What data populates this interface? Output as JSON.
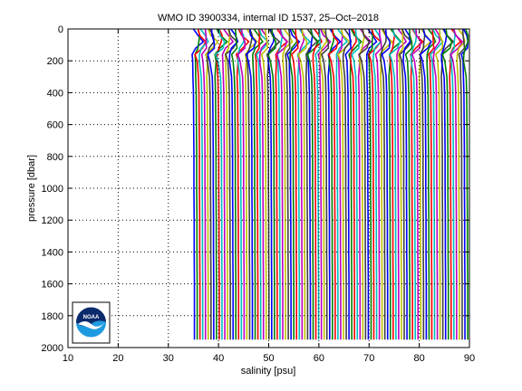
{
  "chart_data": {
    "type": "line",
    "title": "WMO ID 3900334, internal ID 1537, 25–Oct–2018",
    "xlabel": "salinity [psu]",
    "ylabel": "pressure [dbar]",
    "xlim": [
      10,
      90
    ],
    "ylim": [
      2000,
      0
    ],
    "x_ticks": [
      10,
      20,
      30,
      40,
      50,
      60,
      70,
      80,
      90
    ],
    "y_ticks": [
      0,
      200,
      400,
      600,
      800,
      1000,
      1200,
      1400,
      1600,
      1800,
      2000
    ],
    "grid": true,
    "grid_style": "dotted",
    "legend": false,
    "profile_offsets": {
      "first_profile_x": 34.9,
      "last_profile_x": 89.2,
      "profile_spacing": 0.55,
      "profile_count": 100
    },
    "profile_shape": {
      "pressure": [
        0,
        40,
        80,
        120,
        160,
        200,
        300,
        400,
        600,
        800,
        1000,
        1200,
        1400,
        1600,
        1800,
        1950
      ],
      "salinity_anomaly": [
        0.1,
        0.6,
        1.2,
        0.5,
        -0.4,
        -0.2,
        0.0,
        0.1,
        0.15,
        0.2,
        0.2,
        0.25,
        0.25,
        0.3,
        0.3,
        0.3
      ]
    },
    "series_colors": [
      "#0000ff",
      "#008000",
      "#ff0000",
      "#00bfbf",
      "#bf00bf",
      "#bfbf00",
      "#404040"
    ]
  },
  "logo": {
    "name": "noaa-logo",
    "text": "NOAA",
    "colors": {
      "top": "#0a2a6b",
      "bottom": "#1e9be0",
      "bird": "#ffffff"
    }
  }
}
